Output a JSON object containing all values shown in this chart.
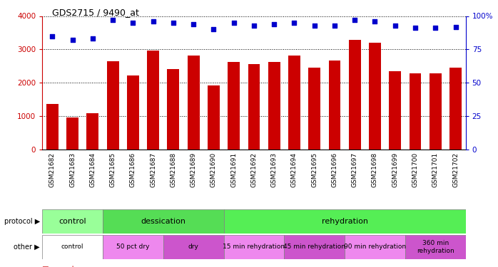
{
  "title": "GDS2715 / 9490_at",
  "samples": [
    "GSM21682",
    "GSM21683",
    "GSM21684",
    "GSM21685",
    "GSM21686",
    "GSM21687",
    "GSM21688",
    "GSM21689",
    "GSM21690",
    "GSM21691",
    "GSM21692",
    "GSM21693",
    "GSM21694",
    "GSM21695",
    "GSM21696",
    "GSM21697",
    "GSM21698",
    "GSM21699",
    "GSM21700",
    "GSM21701",
    "GSM21702"
  ],
  "bar_values": [
    1370,
    960,
    1080,
    2650,
    2210,
    2970,
    2420,
    2820,
    1930,
    2630,
    2570,
    2620,
    2820,
    2450,
    2660,
    3290,
    3200,
    2340,
    2290,
    2280,
    2460
  ],
  "pct_values": [
    85,
    82,
    83,
    97,
    95,
    96,
    95,
    94,
    90,
    95,
    93,
    94,
    95,
    93,
    93,
    97,
    96,
    93,
    91,
    91,
    92
  ],
  "bar_color": "#cc0000",
  "pct_color": "#0000cc",
  "ylim_left": [
    0,
    4000
  ],
  "ylim_right": [
    0,
    100
  ],
  "yticks_left": [
    0,
    1000,
    2000,
    3000,
    4000
  ],
  "yticks_right": [
    0,
    25,
    50,
    75,
    100
  ],
  "ytick_labels_right": [
    "0",
    "25",
    "50",
    "75",
    "100%"
  ],
  "protocol_groups": [
    {
      "label": "control",
      "start": 0,
      "end": 3,
      "color": "#99ff99"
    },
    {
      "label": "dessication",
      "start": 3,
      "end": 9,
      "color": "#55dd55"
    },
    {
      "label": "rehydration",
      "start": 9,
      "end": 21,
      "color": "#55ee55"
    }
  ],
  "other_groups": [
    {
      "label": "control",
      "start": 0,
      "end": 3,
      "color": "#ffffff"
    },
    {
      "label": "50 pct dry",
      "start": 3,
      "end": 6,
      "color": "#ee88ee"
    },
    {
      "label": "dry",
      "start": 6,
      "end": 9,
      "color": "#cc55cc"
    },
    {
      "label": "15 min rehydration",
      "start": 9,
      "end": 12,
      "color": "#ee88ee"
    },
    {
      "label": "45 min rehydration",
      "start": 12,
      "end": 15,
      "color": "#cc55cc"
    },
    {
      "label": "90 min rehydration",
      "start": 15,
      "end": 18,
      "color": "#ee88ee"
    },
    {
      "label": "360 min\nrehydration",
      "start": 18,
      "end": 21,
      "color": "#cc55cc"
    }
  ],
  "legend_count_color": "#cc0000",
  "legend_pct_color": "#0000cc",
  "bg_color": "#ffffff"
}
